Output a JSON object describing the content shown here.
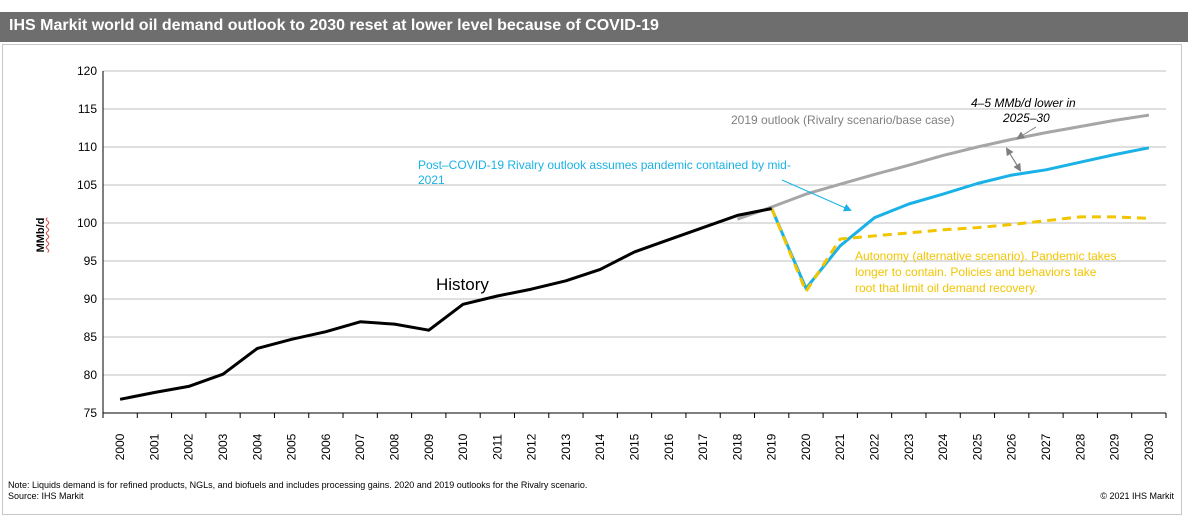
{
  "header": {
    "title": "IHS Markit world oil demand outlook to 2030 reset at lower level because of COVID-19"
  },
  "footer": {
    "note": "Note: Liquids demand is for refined products, NGLs, and biofuels and includes processing gains. 2020 and 2019 outlooks for the Rivalry scenario.",
    "source": "Source: IHS Markit",
    "copyright": "© 2021 IHS Markit"
  },
  "colors": {
    "title_bar": "#6e6e6e",
    "history": "#000000",
    "outlook_2019": "#a6a6a6",
    "rivalry_post_covid": "#1ab2e6",
    "autonomy": "#f2c500",
    "gridline": "#bfbfbf"
  },
  "chart_data": {
    "type": "line",
    "ylabel": "MMb/d",
    "ylim": [
      75,
      120
    ],
    "yticks": [
      75,
      80,
      85,
      90,
      95,
      100,
      105,
      110,
      115,
      120
    ],
    "x_ticks": [
      "2000",
      "2001",
      "2002",
      "2003",
      "2004",
      "2005",
      "2006",
      "2007",
      "2008",
      "2009",
      "2010",
      "2011",
      "2012",
      "2013",
      "2014",
      "2015",
      "2016",
      "2017",
      "2018",
      "2019",
      "2020",
      "2021",
      "2022",
      "2023",
      "2024",
      "2025",
      "2026",
      "2027",
      "2028",
      "2029",
      "2030"
    ],
    "grid": true,
    "series": [
      {
        "key": "history",
        "style": "solid",
        "x": [
          2000,
          2001,
          2002,
          2003,
          2004,
          2005,
          2006,
          2007,
          2008,
          2009,
          2010,
          2011,
          2012,
          2013,
          2014,
          2015,
          2016,
          2017,
          2018,
          2019
        ],
        "values": [
          76.8,
          77.7,
          78.5,
          80.1,
          83.5,
          84.7,
          85.7,
          87.0,
          86.7,
          85.9,
          89.3,
          90.4,
          91.3,
          92.4,
          93.9,
          96.2,
          97.8,
          99.4,
          101.0,
          101.9
        ]
      },
      {
        "key": "outlook_2019",
        "style": "solid",
        "x": [
          2018,
          2019,
          2020,
          2021,
          2022,
          2023,
          2024,
          2025,
          2026,
          2027,
          2028,
          2029,
          2030
        ],
        "values": [
          100.5,
          102.1,
          103.8,
          105.1,
          106.4,
          107.6,
          108.9,
          110.0,
          111.0,
          111.9,
          112.7,
          113.5,
          114.2
        ]
      },
      {
        "key": "rivalry_post_covid",
        "style": "solid",
        "x": [
          2019,
          2020,
          2021,
          2022,
          2023,
          2024,
          2025,
          2026,
          2027,
          2028,
          2029,
          2030
        ],
        "values": [
          101.9,
          91.4,
          97.0,
          100.7,
          102.5,
          103.8,
          105.2,
          106.3,
          107.0,
          108.0,
          109.0,
          109.9
        ]
      },
      {
        "key": "autonomy",
        "style": "dashed",
        "x": [
          2019,
          2020,
          2021,
          2022,
          2023,
          2024,
          2025,
          2026,
          2027,
          2028,
          2029,
          2030
        ],
        "values": [
          101.9,
          91.0,
          97.9,
          98.3,
          98.7,
          99.1,
          99.4,
          99.8,
          100.3,
          100.8,
          100.8,
          100.6
        ]
      }
    ],
    "annotations": {
      "history_label": "History",
      "outlook_2019_label": "2019 outlook (Rivalry scenario/base case)",
      "rivalry_label_line1": "Post–COVID-19 Rivalry outlook assumes pandemic contained by mid-",
      "rivalry_label_line2": "2021",
      "autonomy_label_line1": "Autonomy (alternative scenario). Pandemic takes",
      "autonomy_label_line2": "longer to contain. Policies and behaviors take",
      "autonomy_label_line3": "root that limit oil demand recovery.",
      "gap_label_line1": "4–5 MMb/d lower in",
      "gap_label_line2": "2025–30"
    }
  }
}
